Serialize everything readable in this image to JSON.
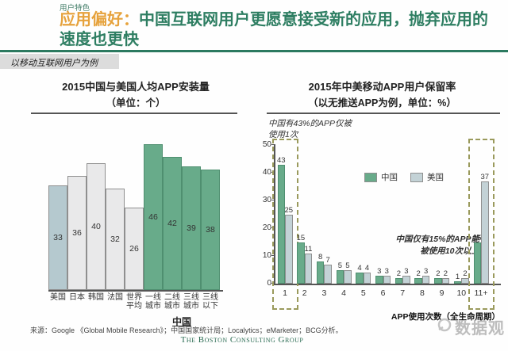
{
  "header": {
    "eyebrow": "用户特色",
    "title_highlight": "应用偏好：",
    "title_rest": "中国互联网用户更愿意接受新的应用，抛弃应用的\n速度也更快",
    "subtitle_tag": "以移动互联网用户为例"
  },
  "colors": {
    "title_green": "#2e7e62",
    "title_orange": "#e6a23c",
    "bar_china_green": "#68ab8a",
    "bar_china_border": "#4f8f70",
    "bar_us_left_blue": "#b5c9cf",
    "bar_neutral_gray": "#e9e9ea",
    "bar_us_right_gray": "#c3d2d6",
    "bar_border_gray": "#8f8f8f",
    "dashed_box_olive": "#9a9a5c"
  },
  "chart_data": [
    {
      "type": "bar",
      "title": "2015中国与美国人均APP安装量",
      "subtitle": "（单位：个）",
      "categories": [
        "美国",
        "日本",
        "韩国",
        "法国",
        "世界平均",
        "一线城市",
        "二线城市",
        "三线城市",
        "三线以下"
      ],
      "values": [
        33,
        36,
        40,
        32,
        26,
        46,
        42,
        39,
        38
      ],
      "bar_styles": [
        "us",
        "neutral",
        "neutral",
        "neutral",
        "neutral",
        "china",
        "china",
        "china",
        "china"
      ],
      "group_label": "中国",
      "ylim": [
        0,
        50
      ],
      "legend_position": "none",
      "grid": false
    },
    {
      "type": "grouped-bar",
      "title": "2015年中美移动APP用户保留率",
      "subtitle": "（以无推送APP为例，单位：%）",
      "categories": [
        "1",
        "2",
        "3",
        "4",
        "5",
        "6",
        "7",
        "8",
        "9",
        "10",
        "11+"
      ],
      "series": [
        {
          "name": "中国",
          "values": [
            43,
            15,
            8,
            5,
            4,
            3,
            2,
            2,
            2,
            1,
            15
          ]
        },
        {
          "name": "美国",
          "values": [
            25,
            11,
            7,
            5,
            4,
            3,
            3,
            3,
            2,
            2,
            37
          ]
        }
      ],
      "yticks": [
        0,
        10,
        20,
        30,
        40,
        50
      ],
      "ylim": [
        0,
        50
      ],
      "annotation_top": "中国有43%的APP仅被\n使用1次",
      "annotation_mid": "中国仅有15%的APP能\n被使用10次以上",
      "xlabel": "APP使用次数（全生命周期）",
      "highlight_group_indices": [
        0,
        10
      ],
      "legend_position": "inside-top",
      "grid": false
    }
  ],
  "footer": {
    "source": "来源：Google 《Global Mobile Research》；中国国家统计局；Localytics；eMarketer；BCG分析。",
    "brand": "The Boston Consulting Group",
    "watermark": "数据观"
  }
}
